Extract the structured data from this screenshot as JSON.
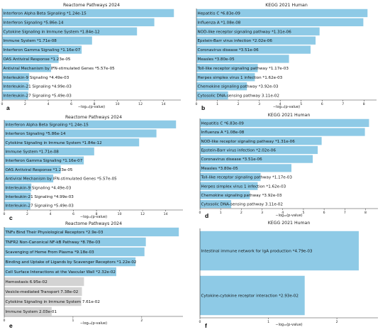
{
  "chart_data": [
    {
      "panel": "a",
      "type": "bar",
      "orientation": "horizontal",
      "title": "Reactome Pathways 2024",
      "xlabel": "−log₁₀(p-value)",
      "xlim": [
        0,
        15.5
      ],
      "xticks": [
        "0",
        "2",
        "4",
        "6",
        "8",
        "10",
        "12",
        "14"
      ],
      "bars": [
        {
          "label": "Interferon Alpha Beta Signaling  *1.24e-15",
          "value": 14.9,
          "color": "#8ecae6"
        },
        {
          "label": "Interferon Signaling  *5.86e-14",
          "value": 13.2,
          "color": "#8ecae6"
        },
        {
          "label": "Cytokine Signaling in Immune System  *1.84e-12",
          "value": 11.7,
          "color": "#8ecae6"
        },
        {
          "label": "Immune System  *1.71e-08",
          "value": 7.8,
          "color": "#8ecae6"
        },
        {
          "label": "Interferon Gamma Signaling  *1.16e-07",
          "value": 6.9,
          "color": "#8ecae6"
        },
        {
          "label": "OAS Antiviral Response  *1.23e-05",
          "value": 4.9,
          "color": "#8ecae6"
        },
        {
          "label": "Antiviral Mechanism by IFN-stimulated Genes  *5.57e-05",
          "value": 4.25,
          "color": "#8ecae6"
        },
        {
          "label": "Interleukin-9 Signaling  *4.49e-03",
          "value": 2.35,
          "color": "#8ecae6"
        },
        {
          "label": "Interleukin-21 Signaling  *4.99e-03",
          "value": 2.3,
          "color": "#8ecae6"
        },
        {
          "label": "Interleukin-27 Signaling  *5.49e-03",
          "value": 2.26,
          "color": "#8ecae6"
        }
      ]
    },
    {
      "panel": "b",
      "type": "bar",
      "orientation": "horizontal",
      "title": "KEGG 2021 Human",
      "xlabel": "−log₁₀(p-value)",
      "xlim": [
        0,
        8.6
      ],
      "xticks": [
        "0",
        "1",
        "2",
        "3",
        "4",
        "5",
        "6",
        "7",
        "8"
      ],
      "bars": [
        {
          "label": "Hepatitis C  *6.83e-09",
          "value": 8.17,
          "color": "#8ecae6"
        },
        {
          "label": "Influenza A  *1.08e-08",
          "value": 7.97,
          "color": "#8ecae6"
        },
        {
          "label": "NOD-like receptor signaling pathway  *1.31e-06",
          "value": 5.88,
          "color": "#8ecae6"
        },
        {
          "label": "Epstein-Barr virus infection  *2.02e-06",
          "value": 5.69,
          "color": "#8ecae6"
        },
        {
          "label": "Coronavirus disease  *3.51e-06",
          "value": 5.45,
          "color": "#8ecae6"
        },
        {
          "label": "Measles  *3.80e-05",
          "value": 4.42,
          "color": "#8ecae6"
        },
        {
          "label": "Toll-like receptor signaling pathway  *1.17e-03",
          "value": 2.93,
          "color": "#8ecae6"
        },
        {
          "label": "Herpes simplex virus 1 infection  *1.62e-03",
          "value": 2.79,
          "color": "#8ecae6"
        },
        {
          "label": "Chemokine signaling pathway  *3.92e-03",
          "value": 2.41,
          "color": "#8ecae6"
        },
        {
          "label": "Cytosolic DNA-sensing pathway  3.11e-02",
          "value": 1.51,
          "color": "#8ecae6"
        }
      ]
    },
    {
      "panel": "c",
      "type": "bar",
      "orientation": "horizontal",
      "title": "Reactome Pathways 2024",
      "xlabel": "−log₁₀(p-value)",
      "xlim": [
        0,
        15.5
      ],
      "xticks": [
        "0",
        "2",
        "4",
        "6",
        "8",
        "10",
        "12",
        "14"
      ],
      "bars": [
        {
          "label": "Interferon Alpha Beta Signaling  *1.24e-15",
          "value": 14.9,
          "color": "#8ecae6"
        },
        {
          "label": "Interferon Signaling  *5.86e-14",
          "value": 13.2,
          "color": "#8ecae6"
        },
        {
          "label": "Cytokine Signaling in Immune System  *1.84e-12",
          "value": 11.7,
          "color": "#8ecae6"
        },
        {
          "label": "Immune System  *1.71e-08",
          "value": 7.8,
          "color": "#8ecae6"
        },
        {
          "label": "Interferon Gamma Signaling  *1.16e-07",
          "value": 6.9,
          "color": "#8ecae6"
        },
        {
          "label": "OAS Antiviral Response  *1.23e-05",
          "value": 4.9,
          "color": "#8ecae6"
        },
        {
          "label": "Antiviral Mechanism by IFN-stimulated Genes  *5.57e-05",
          "value": 4.25,
          "color": "#8ecae6"
        },
        {
          "label": "Interleukin-9 Signaling  *4.49e-03",
          "value": 2.35,
          "color": "#8ecae6"
        },
        {
          "label": "Interleukin-21 Signaling  *4.99e-03",
          "value": 2.3,
          "color": "#8ecae6"
        },
        {
          "label": "Interleukin-27 Signaling  *5.49e-03",
          "value": 2.26,
          "color": "#8ecae6"
        }
      ]
    },
    {
      "panel": "d",
      "type": "bar",
      "orientation": "horizontal",
      "title": "KEGG 2021 Human",
      "xlabel": "−log₁₀(p-value)",
      "xlim": [
        0,
        8.6
      ],
      "xticks": [
        "0",
        "1",
        "2",
        "3",
        "4",
        "5",
        "6",
        "7",
        "8"
      ],
      "bars": [
        {
          "label": "Hepatitis C  *6.83e-09",
          "value": 8.17,
          "color": "#8ecae6"
        },
        {
          "label": "Influenza A  *1.08e-08",
          "value": 7.97,
          "color": "#8ecae6"
        },
        {
          "label": "NOD-like receptor signaling pathway  *1.31e-06",
          "value": 5.88,
          "color": "#8ecae6"
        },
        {
          "label": "Epstein-Barr virus infection  *2.02e-06",
          "value": 5.69,
          "color": "#8ecae6"
        },
        {
          "label": "Coronavirus disease  *3.51e-06",
          "value": 5.45,
          "color": "#8ecae6"
        },
        {
          "label": "Measles  *3.80e-05",
          "value": 4.42,
          "color": "#8ecae6"
        },
        {
          "label": "Toll-like receptor signaling pathway  *1.17e-03",
          "value": 2.93,
          "color": "#8ecae6"
        },
        {
          "label": "Herpes simplex virus 1 infection  *1.62e-03",
          "value": 2.79,
          "color": "#8ecae6"
        },
        {
          "label": "Chemokine signaling pathway  *3.92e-03",
          "value": 2.41,
          "color": "#8ecae6"
        },
        {
          "label": "Cytosolic DNA-sensing pathway  3.11e-02",
          "value": 1.51,
          "color": "#8ecae6"
        }
      ]
    },
    {
      "panel": "e",
      "type": "bar",
      "orientation": "horizontal",
      "title": "Reactome Pathways 2024",
      "xlabel": "−log₁₀(p-value)",
      "xlim": [
        0,
        2.6
      ],
      "xticks": [
        "0",
        "1",
        "2"
      ],
      "bars": [
        {
          "label": "TNFs Bind Their Physiological Receptors  *2.9e-03",
          "value": 2.54,
          "color": "#8ecae6"
        },
        {
          "label": "TNFR2 Non-Canonical NF-kB Pathway  *8.78e-03",
          "value": 2.06,
          "color": "#8ecae6"
        },
        {
          "label": "Scavenging of Heme From Plasma  *9.18e-03",
          "value": 2.04,
          "color": "#8ecae6"
        },
        {
          "label": "Binding and Uptake of Ligands by Scavenger Receptors  *1.22e-02",
          "value": 1.91,
          "color": "#8ecae6"
        },
        {
          "label": "Cell Surface Interactions at the Vascular Wall  *2.32e-02",
          "value": 1.63,
          "color": "#8ecae6"
        },
        {
          "label": "Hemostasis  6.95e-02",
          "value": 1.16,
          "color": "#d3d3d3"
        },
        {
          "label": "Vesicle-mediated Transport  7.38e-02",
          "value": 1.13,
          "color": "#d3d3d3"
        },
        {
          "label": "Cytokine Signaling in Immune System  7.61e-02",
          "value": 1.12,
          "color": "#d3d3d3"
        },
        {
          "label": "Immune System  2.03e-01",
          "value": 0.69,
          "color": "#d3d3d3"
        }
      ]
    },
    {
      "panel": "f",
      "type": "bar",
      "orientation": "horizontal",
      "title": "KEGG 2021 Human",
      "xlabel": "−log₁₀(p-value)",
      "xlim": [
        0,
        2.6
      ],
      "xticks": [
        "0",
        "1",
        "2"
      ],
      "bars": [
        {
          "label": "Intestinal immune network for IgA production  *4.79e-03",
          "value": 2.32,
          "color": "#8ecae6"
        },
        {
          "label": "Cytokine-cytokine receptor interaction  *2.93e-02",
          "value": 1.53,
          "color": "#8ecae6"
        }
      ]
    }
  ]
}
